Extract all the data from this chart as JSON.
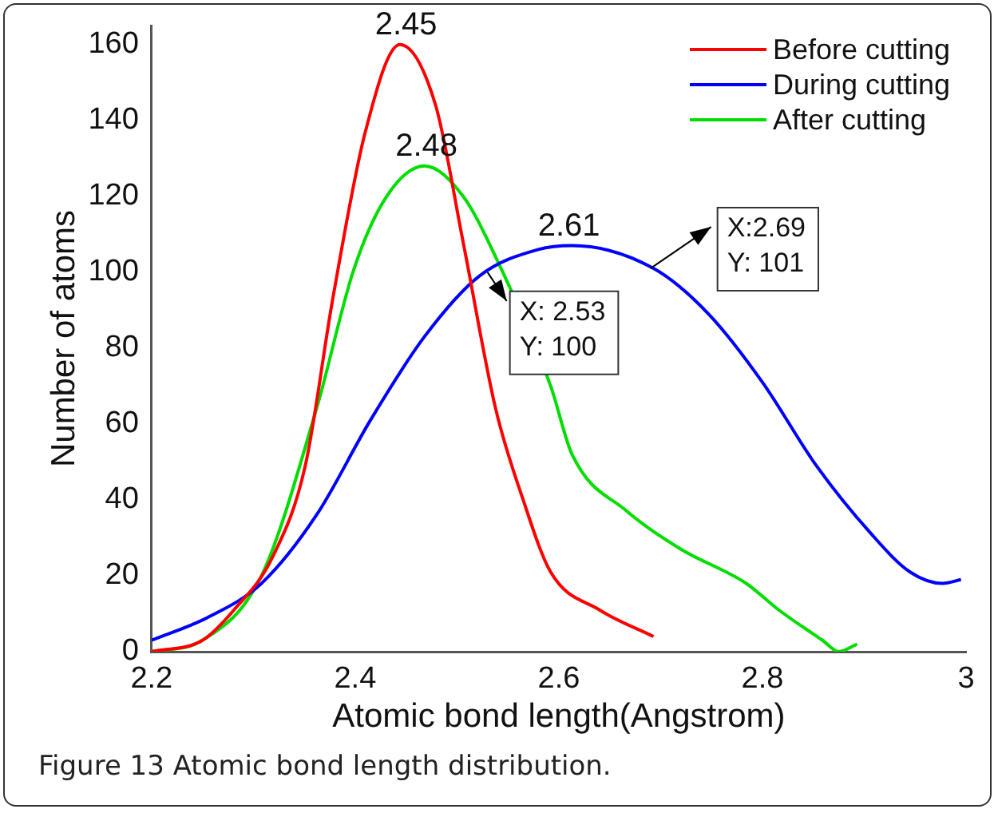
{
  "chart_data": {
    "type": "line",
    "xlabel": "Atomic bond length(Angstrom)",
    "ylabel": "Number of atoms",
    "xlim": [
      2.2,
      3
    ],
    "xticks": [
      2.2,
      2.4,
      2.6,
      2.8,
      3
    ],
    "ylim": [
      0,
      165
    ],
    "yticks": [
      0,
      20,
      40,
      60,
      80,
      100,
      120,
      140,
      160
    ],
    "grid": false,
    "legend": "top right",
    "marker": "none",
    "line_style": "solid",
    "series": [
      {
        "name": "Before cutting",
        "color": "#ff0000",
        "x": [
          2.2,
          2.25,
          2.281,
          2.319,
          2.351,
          2.378,
          2.41,
          2.444,
          2.479,
          2.506,
          2.538,
          2.565,
          2.592,
          2.64,
          2.693
        ],
        "values": [
          0,
          3,
          11,
          25,
          49,
          93,
          137,
          160,
          144,
          108,
          64,
          40,
          21,
          11,
          4
        ]
      },
      {
        "name": "During cutting",
        "color": "#0000ff",
        "x": [
          2.2,
          2.255,
          2.308,
          2.362,
          2.415,
          2.468,
          2.522,
          2.58,
          2.613,
          2.693,
          2.747,
          2.8,
          2.853,
          2.907,
          2.945,
          2.977,
          2.995
        ],
        "values": [
          3,
          9,
          18,
          36,
          61,
          83,
          99,
          106,
          107,
          101,
          89,
          71,
          49,
          31,
          21,
          18,
          19
        ]
      },
      {
        "name": "After cutting",
        "color": "#00dd00",
        "x": [
          2.2,
          2.25,
          2.308,
          2.362,
          2.399,
          2.431,
          2.468,
          2.506,
          2.538,
          2.592,
          2.613,
          2.667,
          2.72,
          2.784,
          2.816,
          2.859,
          2.875,
          2.893
        ],
        "values": [
          0,
          3,
          20,
          64,
          101,
          120,
          128,
          120,
          104,
          70,
          52,
          37,
          27,
          18,
          11,
          3,
          0,
          2
        ]
      }
    ],
    "annotations": [
      {
        "text": "2.45",
        "x": 2.45,
        "y": 160
      },
      {
        "text": "2.48",
        "x": 2.47,
        "y": 128
      },
      {
        "text": "2.61",
        "x": 2.61,
        "y": 107
      },
      {
        "text": "X: 2.53\nY: 100",
        "x": 2.53,
        "y": 100
      },
      {
        "text": "X:2.69\nY: 101",
        "x": 2.69,
        "y": 101
      },
      "Figure 13 Atomic bond length distribution."
    ]
  }
}
